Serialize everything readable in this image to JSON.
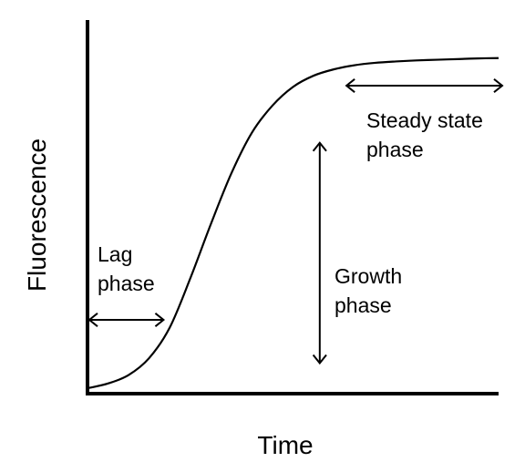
{
  "chart_data": {
    "type": "line",
    "title": "",
    "xlabel": "Time",
    "ylabel": "Fluorescence",
    "xlim": [
      0,
      100
    ],
    "ylim": [
      0,
      100
    ],
    "grid": false,
    "legend": "none",
    "x_ticks_shown": false,
    "y_ticks_shown": false,
    "series": [
      {
        "x": [
          0,
          5,
          10,
          15,
          20,
          25,
          30,
          35,
          40,
          45,
          50,
          55,
          60,
          65,
          70,
          75,
          80,
          85,
          90,
          95,
          100
        ],
        "values": [
          1.6,
          3,
          5.5,
          10.5,
          19.5,
          34,
          50,
          65,
          77,
          85,
          90.5,
          93.8,
          95.7,
          96.9,
          97.6,
          98,
          98.3,
          98.5,
          98.7,
          98.9,
          99
        ]
      }
    ],
    "annotations": [
      {
        "lines": [
          "Lag",
          "phase"
        ],
        "arrow": "horizontal",
        "x_range": [
          0,
          18.5
        ]
      },
      {
        "lines": [
          "Growth",
          "phase"
        ],
        "arrow": "vertical",
        "x": 56.5,
        "y_range": [
          9,
          74
        ]
      },
      {
        "lines": [
          "Steady state",
          "phase"
        ],
        "arrow": "horizontal",
        "x_range": [
          63,
          100
        ]
      }
    ]
  }
}
